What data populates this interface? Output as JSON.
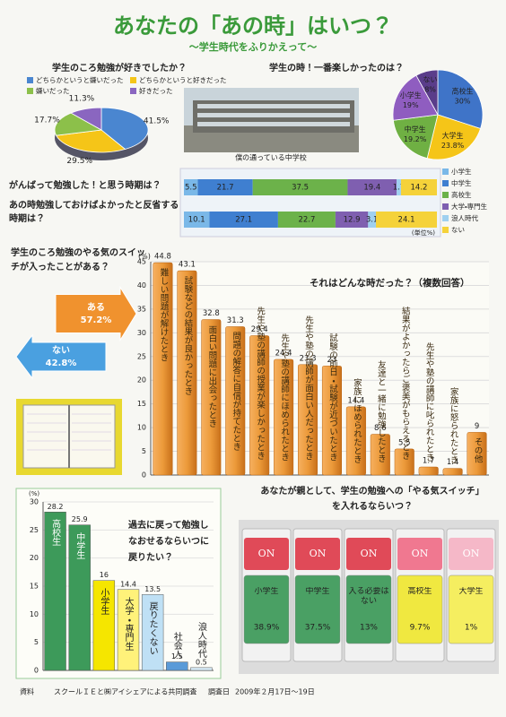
{
  "header": {
    "title": "あなたの「あの時」はいつ？",
    "subtitle": "～学生時代をふりかえって～"
  },
  "photo_caption": "僕の通っている中学校",
  "footer": {
    "source_label": "資料",
    "source": "スクールＩＥと㈱アイシェアによる共同調査",
    "date_label": "調査日",
    "date": "2009年２月17日～19日"
  },
  "chart_data": [
    {
      "type": "pie",
      "title": "学生のころ勉強が好きでしたか？",
      "categories": [
        "どちらかというと嫌いだった",
        "どちらかというと好きだった",
        "嫌いだった",
        "好きだった"
      ],
      "values": [
        41.5,
        29.5,
        17.7,
        11.3
      ],
      "value_labels": [
        "41.5%",
        "29.5%",
        "17.7%",
        "11.3%"
      ],
      "colors": [
        "#4a86d0",
        "#f5c518",
        "#8cc04a",
        "#8a66c0"
      ]
    },
    {
      "type": "pie",
      "title": "学生の時！一番楽しかったのは？",
      "categories": [
        "高校生",
        "大学生",
        "中学生",
        "小学生",
        "ない"
      ],
      "values": [
        30,
        23.8,
        19.2,
        19,
        8
      ],
      "value_labels": [
        "30%",
        "23.8%",
        "19.2%",
        "19%",
        "8%"
      ],
      "colors": [
        "#3f74c8",
        "#f5c518",
        "#6fb043",
        "#8f5dc0",
        "#5a3d8a"
      ]
    },
    {
      "type": "bar",
      "stacked": true,
      "orientation": "horizontal",
      "unit": "(単位%)",
      "categories": [
        "がんばって勉強した！と思う時期は？",
        "あの時勉強しておけばよかったと反省する時期は？"
      ],
      "xlim": [
        0,
        100
      ],
      "series": [
        {
          "name": "小学生",
          "color": "#7ab8e8",
          "values": [
            5.5,
            10.1
          ]
        },
        {
          "name": "中学生",
          "color": "#3f7fd0",
          "values": [
            21.7,
            27.1
          ]
        },
        {
          "name": "高校生",
          "color": "#6cb24a",
          "values": [
            37.5,
            22.7
          ]
        },
        {
          "name": "大学・専門生",
          "color": "#7f5fb0",
          "values": [
            19.4,
            12.9
          ]
        },
        {
          "name": "浪人時代",
          "color": "#9fd0f0",
          "values": [
            1.7,
            3.1
          ]
        },
        {
          "name": "ない",
          "color": "#f5d23a",
          "values": [
            14.2,
            24.1
          ]
        }
      ]
    },
    {
      "type": "bar",
      "title": "それはどんな時だった？（複数回答）",
      "ylabel": "(%)",
      "categories": [
        "難しい問題が解けたとき",
        "試験などの結果が良かったとき",
        "面白い問題に出会ったとき",
        "問題の解答に自信が持てたとき",
        "先生や塾の講師の授業が楽しかったとき",
        "先生や塾の講師にほめられたとき",
        "先生や塾の講師が面白い人だったとき",
        "試験の前日・試験が近づいたとき",
        "家族にほめられたとき",
        "友達と一緒に勉強したとき",
        "結果がよかったらご褒美がもらえるとき",
        "先生や塾の講師に叱られたとき",
        "家族に怒られたとき",
        "その他"
      ],
      "values": [
        44.8,
        43.1,
        32.8,
        31.3,
        29.4,
        24.4,
        23.3,
        23,
        14.4,
        8.6,
        5.5,
        1.7,
        1.4,
        9
      ],
      "color": "#e8922e",
      "ylim": [
        0,
        45
      ],
      "yticks": [
        0,
        5,
        10,
        15,
        20,
        25,
        30,
        35,
        40,
        45
      ],
      "grid": true
    },
    {
      "type": "arrow",
      "title": "学生のころ勉強のやる気のスイッチが入ったことがある？",
      "categories": [
        "ある",
        "ない"
      ],
      "values": [
        57.2,
        42.8
      ],
      "value_labels": [
        "57.2%",
        "42.8%"
      ],
      "colors": [
        "#f0922e",
        "#4aa0e0"
      ]
    },
    {
      "type": "bar",
      "title": "過去に戻って勉強しなおせるならいつに戻りたい？",
      "ylabel": "(%)",
      "categories": [
        "高校生",
        "中学生",
        "小学生",
        "大学・専門生",
        "戻りたくない",
        "社会人",
        "浪人時代"
      ],
      "values": [
        28.2,
        25.9,
        16,
        14.4,
        13.5,
        1.5,
        0.5
      ],
      "colors": [
        "#3d9a5a",
        "#3d9a5a",
        "#f5e600",
        "#fff27a",
        "#bfe0f5",
        "#5a9ad8",
        "#d8ecf8"
      ],
      "ylim": [
        0,
        30
      ],
      "yticks": [
        0,
        5,
        10,
        15,
        20,
        25,
        30
      ],
      "grid": true
    },
    {
      "type": "switch",
      "title": "あなたが親として、学生の勉強への「やる気スイッチ」を入れるならいつ？",
      "switch_label": "ON",
      "categories": [
        "小学生",
        "中学生",
        "入る必要はない",
        "高校生",
        "大学生"
      ],
      "values": [
        38.9,
        37.5,
        13,
        9.7,
        1
      ],
      "value_labels": [
        "38.9%",
        "37.5%",
        "13%",
        "9.7%",
        "1%"
      ],
      "colors": [
        "#4aa064",
        "#4aa064",
        "#4aa064",
        "#f0e840",
        "#f5ee60"
      ],
      "switch_colors": [
        "#e04a58",
        "#e04a58",
        "#e04a58",
        "#f07890",
        "#f5b8c8"
      ]
    }
  ]
}
